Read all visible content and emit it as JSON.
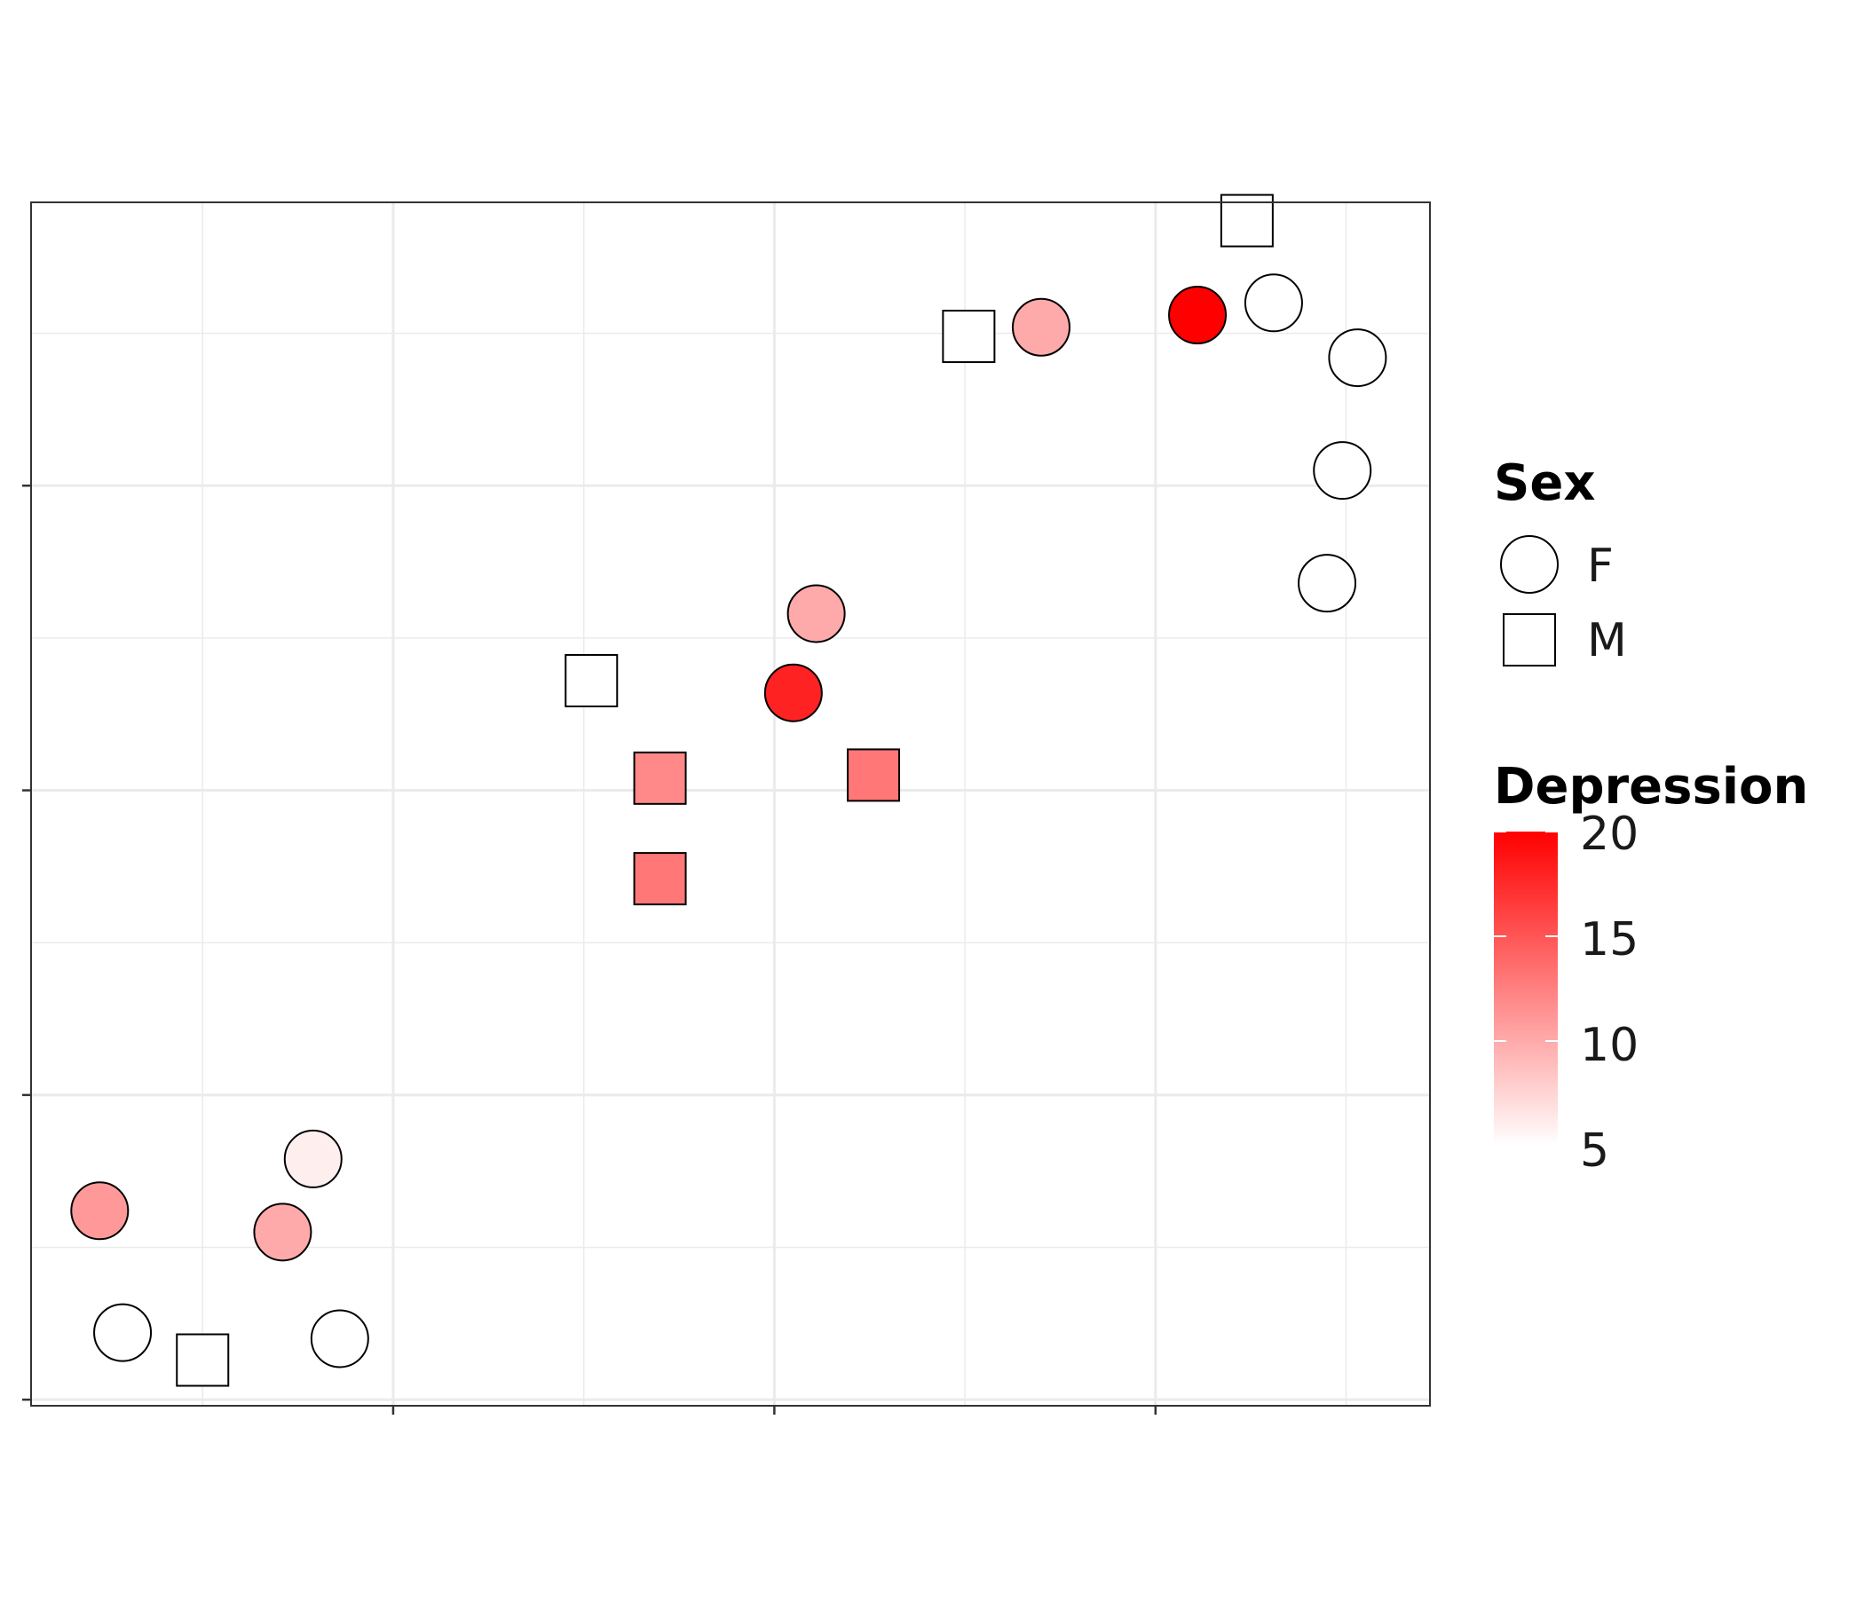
{
  "chart_data": {
    "type": "scatter",
    "title": "",
    "xlabel": "",
    "ylabel": "",
    "xlim": [
      -1.95,
      1.72
    ],
    "ylim": [
      -1.02,
      2.93
    ],
    "x_ticks": [
      -1,
      0,
      1
    ],
    "y_ticks": [
      -1,
      0,
      1,
      2
    ],
    "grid": true,
    "legend_position": "right",
    "points": [
      {
        "x": -1.77,
        "y": -0.38,
        "sex": "F",
        "depression": 11
      },
      {
        "x": -1.71,
        "y": -0.78,
        "sex": "F",
        "depression": null
      },
      {
        "x": -1.5,
        "y": -0.87,
        "sex": "M",
        "depression": null
      },
      {
        "x": -1.29,
        "y": -0.45,
        "sex": "F",
        "depression": 10
      },
      {
        "x": -1.21,
        "y": -0.21,
        "sex": "F",
        "depression": 6
      },
      {
        "x": -1.14,
        "y": -0.8,
        "sex": "F",
        "depression": null
      },
      {
        "x": -0.48,
        "y": 1.36,
        "sex": "M",
        "depression": null
      },
      {
        "x": -0.3,
        "y": 1.04,
        "sex": "M",
        "depression": 12
      },
      {
        "x": -0.3,
        "y": 0.71,
        "sex": "M",
        "depression": 13
      },
      {
        "x": 0.05,
        "y": 1.32,
        "sex": "F",
        "depression": 18
      },
      {
        "x": 0.11,
        "y": 1.58,
        "sex": "F",
        "depression": 10
      },
      {
        "x": 0.26,
        "y": 1.05,
        "sex": "M",
        "depression": 13
      },
      {
        "x": 0.51,
        "y": 2.49,
        "sex": "M",
        "depression": null
      },
      {
        "x": 0.7,
        "y": 2.52,
        "sex": "F",
        "depression": 10
      },
      {
        "x": 1.11,
        "y": 2.56,
        "sex": "F",
        "depression": 20
      },
      {
        "x": 1.24,
        "y": 2.87,
        "sex": "M",
        "depression": null
      },
      {
        "x": 1.31,
        "y": 2.6,
        "sex": "F",
        "depression": null
      },
      {
        "x": 1.49,
        "y": 2.05,
        "sex": "F",
        "depression": null
      },
      {
        "x": 1.53,
        "y": 2.42,
        "sex": "F",
        "depression": null
      },
      {
        "x": 1.45,
        "y": 1.68,
        "sex": "F",
        "depression": null
      }
    ],
    "legend": {
      "shape": {
        "title": "Sex",
        "entries": [
          "F",
          "M"
        ]
      },
      "color": {
        "title": "Depression",
        "range": [
          5,
          20
        ],
        "ticks": [
          "20",
          "15",
          "10",
          "5"
        ],
        "low_color": "#ffffff",
        "high_color": "#ff0000"
      }
    }
  }
}
